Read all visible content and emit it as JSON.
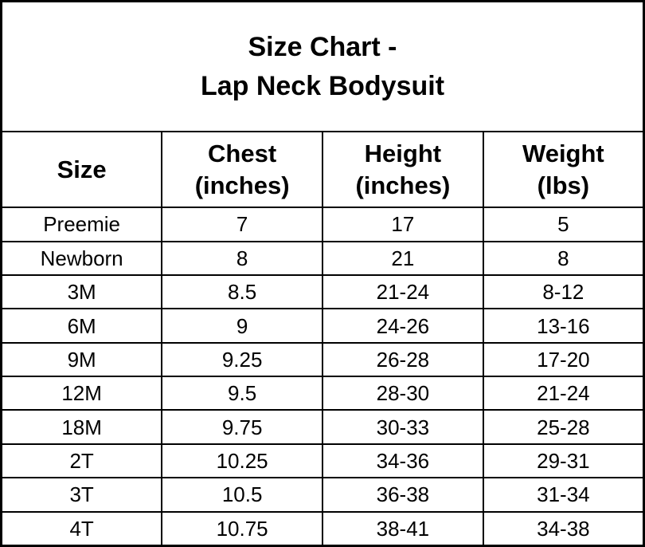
{
  "page": {
    "background": "#ffffff",
    "text_color": "#000000",
    "border_color": "#000000"
  },
  "title": {
    "line1": "Size Chart -",
    "line2": "Lap Neck Bodysuit"
  },
  "table": {
    "headers": [
      {
        "line1": "Size",
        "line2": ""
      },
      {
        "line1": "Chest",
        "line2": "(inches)"
      },
      {
        "line1": "Height",
        "line2": "(inches)"
      },
      {
        "line1": "Weight",
        "line2": "(lbs)"
      }
    ],
    "rows": [
      [
        "Preemie",
        "7",
        "17",
        "5"
      ],
      [
        "Newborn",
        "8",
        "21",
        "8"
      ],
      [
        "3M",
        "8.5",
        "21-24",
        "8-12"
      ],
      [
        "6M",
        "9",
        "24-26",
        "13-16"
      ],
      [
        "9M",
        "9.25",
        "26-28",
        "17-20"
      ],
      [
        "12M",
        "9.5",
        "28-30",
        "21-24"
      ],
      [
        "18M",
        "9.75",
        "30-33",
        "25-28"
      ],
      [
        "2T",
        "10.25",
        "34-36",
        "29-31"
      ],
      [
        "3T",
        "10.5",
        "36-38",
        "31-34"
      ],
      [
        "4T",
        "10.75",
        "38-41",
        "34-38"
      ]
    ]
  },
  "chart_data": {
    "type": "table",
    "title": "Size Chart - Lap Neck Bodysuit",
    "columns": [
      "Size",
      "Chest (inches)",
      "Height (inches)",
      "Weight (lbs)"
    ],
    "rows": [
      [
        "Preemie",
        "7",
        "17",
        "5"
      ],
      [
        "Newborn",
        "8",
        "21",
        "8"
      ],
      [
        "3M",
        "8.5",
        "21-24",
        "8-12"
      ],
      [
        "6M",
        "9",
        "24-26",
        "13-16"
      ],
      [
        "9M",
        "9.25",
        "26-28",
        "17-20"
      ],
      [
        "12M",
        "9.5",
        "28-30",
        "21-24"
      ],
      [
        "18M",
        "9.75",
        "30-33",
        "25-28"
      ],
      [
        "2T",
        "10.25",
        "34-36",
        "29-31"
      ],
      [
        "3T",
        "10.5",
        "36-38",
        "31-34"
      ],
      [
        "4T",
        "10.75",
        "38-41",
        "34-38"
      ]
    ]
  }
}
